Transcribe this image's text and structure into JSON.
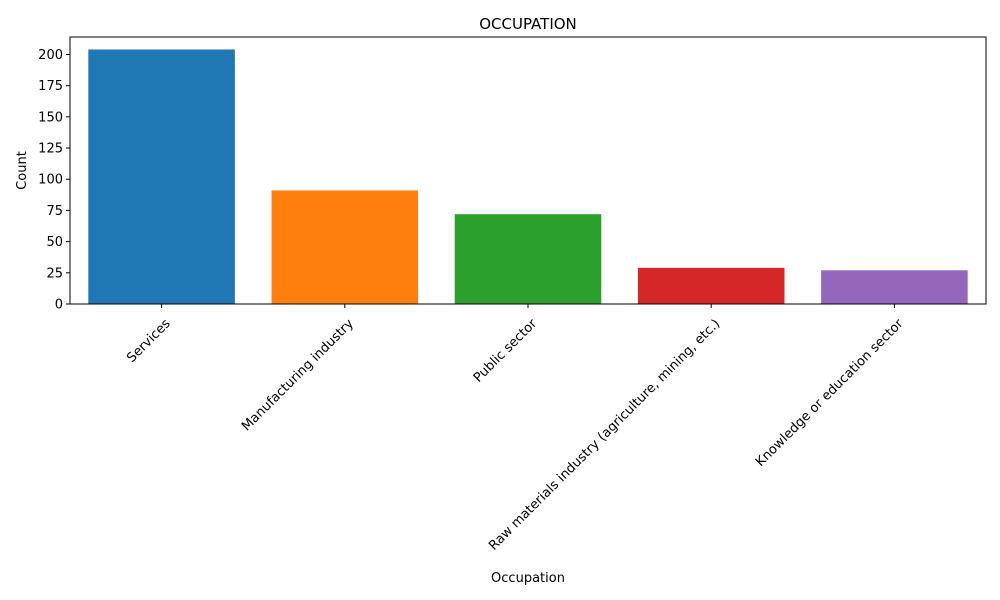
{
  "chart_data": {
    "type": "bar",
    "title": "OCCUPATION",
    "xlabel": "Occupation",
    "ylabel": "Count",
    "categories": [
      "Services",
      "Manufacturing industry",
      "Public sector",
      "Raw materials industry (agriculture, mining, etc.)",
      "Knowledge or education sector"
    ],
    "values": [
      204,
      91,
      72,
      29,
      27
    ],
    "colors": [
      "#1f77b4",
      "#ff7f0e",
      "#2ca02c",
      "#d62728",
      "#9467bd"
    ],
    "ylim": [
      0,
      214
    ],
    "yticks": [
      0,
      25,
      50,
      75,
      100,
      125,
      150,
      175,
      200
    ],
    "grid": false,
    "x_tick_rotation": 45
  }
}
